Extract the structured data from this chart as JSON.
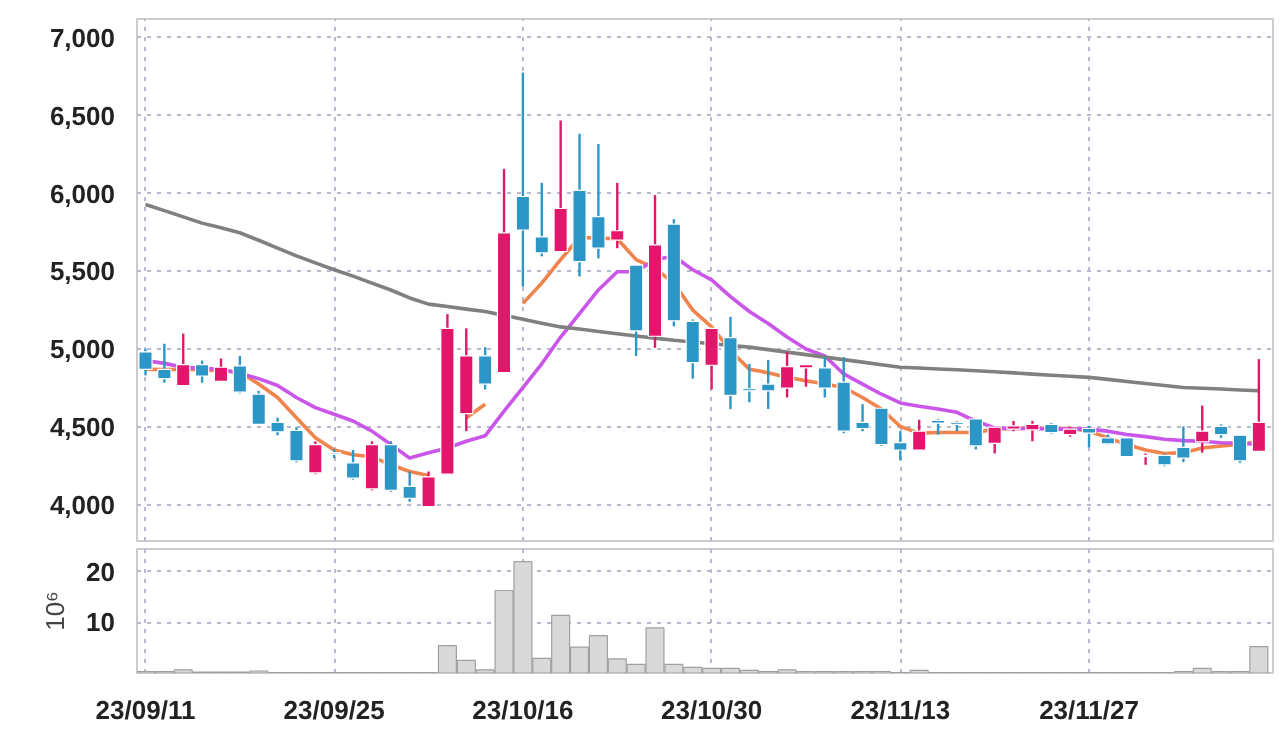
{
  "chart_data": [
    {
      "type": "candlestick",
      "ohlc": [
        [
          4984,
          5002,
          4833,
          4872
        ],
        [
          4872,
          5036,
          4786,
          4812
        ],
        [
          4768,
          5101,
          4768,
          4902
        ],
        [
          4902,
          4928,
          4786,
          4829
        ],
        [
          4794,
          4941,
          4794,
          4885
        ],
        [
          4894,
          4958,
          4717,
          4725
        ],
        [
          4712,
          4734,
          4518,
          4518
        ],
        [
          4531,
          4561,
          4449,
          4471
        ],
        [
          4479,
          4501,
          4276,
          4285
        ],
        [
          4207,
          4410,
          4199,
          4389
        ],
        [
          4337,
          4359,
          4302,
          4328
        ],
        [
          4272,
          4354,
          4164,
          4173
        ],
        [
          4104,
          4410,
          4095,
          4389
        ],
        [
          4389,
          4410,
          4086,
          4095
        ],
        [
          4121,
          4216,
          4022,
          4043
        ],
        [
          3991,
          4216,
          3991,
          4181
        ],
        [
          4199,
          5226,
          4199,
          5135
        ],
        [
          4587,
          5135,
          4475,
          4958
        ],
        [
          4958,
          5014,
          4743,
          4777
        ],
        [
          4850,
          6158,
          4850,
          5748
        ],
        [
          5981,
          6776,
          5403,
          5766
        ],
        [
          5722,
          6068,
          5597,
          5619
        ],
        [
          5628,
          6469,
          5628,
          5904
        ],
        [
          6020,
          6383,
          5468,
          5563
        ],
        [
          5852,
          6318,
          5584,
          5649
        ],
        [
          5701,
          6068,
          5649,
          5761
        ],
        [
          5541,
          5541,
          4958,
          5118
        ],
        [
          5084,
          5990,
          5010,
          5671
        ],
        [
          5804,
          5835,
          5148,
          5183
        ],
        [
          5179,
          5192,
          4812,
          4915
        ],
        [
          4898,
          5135,
          4743,
          5135
        ],
        [
          5075,
          5209,
          4617,
          4704
        ],
        [
          4747,
          4907,
          4660,
          4734
        ],
        [
          4777,
          4932,
          4617,
          4734
        ],
        [
          4751,
          4984,
          4691,
          4889
        ],
        [
          4881,
          4902,
          4760,
          4902
        ],
        [
          4881,
          4950,
          4691,
          4751
        ],
        [
          4790,
          4950,
          4462,
          4475
        ],
        [
          4531,
          4648,
          4475,
          4492
        ],
        [
          4622,
          4622,
          4380,
          4389
        ],
        [
          4401,
          4475,
          4289,
          4354
        ],
        [
          4354,
          4548,
          4354,
          4475
        ],
        [
          4544,
          4553,
          4453,
          4527
        ],
        [
          4531,
          4540,
          4475,
          4518
        ],
        [
          4553,
          4553,
          4358,
          4380
        ],
        [
          4397,
          4501,
          4332,
          4501
        ],
        [
          4488,
          4540,
          4475,
          4509
        ],
        [
          4483,
          4540,
          4410,
          4518
        ],
        [
          4518,
          4527,
          4458,
          4466
        ],
        [
          4453,
          4501,
          4440,
          4488
        ],
        [
          4492,
          4509,
          4371,
          4462
        ],
        [
          4432,
          4453,
          4389,
          4393
        ],
        [
          4432,
          4432,
          4311,
          4311
        ],
        [
          4311,
          4332,
          4259,
          4320
        ],
        [
          4320,
          4332,
          4250,
          4259
        ],
        [
          4371,
          4505,
          4276,
          4302
        ],
        [
          4406,
          4639,
          4337,
          4475
        ],
        [
          4505,
          4518,
          4432,
          4453
        ],
        [
          4449,
          4449,
          4272,
          4285
        ],
        [
          4345,
          4937,
          4345,
          4531
        ]
      ],
      "colors": [
        "#2c96c6",
        "#2c96c6",
        "#e2176b",
        "#2c96c6",
        "#e2176b",
        "#2c96c6",
        "#2c96c6",
        "#2c96c6",
        "#2c96c6",
        "#e2176b",
        "#2c96c6",
        "#2c96c6",
        "#e2176b",
        "#2c96c6",
        "#2c96c6",
        "#e2176b",
        "#e2176b",
        "#e2176b",
        "#2c96c6",
        "#e2176b",
        "#2c96c6",
        "#2c96c6",
        "#e2176b",
        "#2c96c6",
        "#2c96c6",
        "#e2176b",
        "#2c96c6",
        "#e2176b",
        "#2c96c6",
        "#2c96c6",
        "#e2176b",
        "#2c96c6",
        "#2c96c6",
        "#2c96c6",
        "#e2176b",
        "#e2176b",
        "#2c96c6",
        "#2c96c6",
        "#2c96c6",
        "#2c96c6",
        "#2c96c6",
        "#e2176b",
        "#2c96c6",
        "#2c96c6",
        "#2c96c6",
        "#e2176b",
        "#e2176b",
        "#e2176b",
        "#2c96c6",
        "#e2176b",
        "#2c96c6",
        "#2c96c6",
        "#2c96c6",
        "#e2176b",
        "#2c96c6",
        "#2c96c6",
        "#e2176b",
        "#2c96c6",
        "#2c96c6",
        "#e2176b"
      ],
      "series": [
        {
          "type": "line",
          "color": "#f0844c",
          "values": [
            4872,
            4870,
            4872,
            4868,
            4863,
            4855,
            4777,
            4691,
            4561,
            4432,
            4354,
            4324,
            4311,
            4259,
            4216,
            4190,
            null,
            4561,
            4648,
            null,
            5295,
            5425,
            5576,
            5718,
            5714,
            5710,
            5576,
            5520,
            5425,
            5252,
            5144,
            4993,
            4872,
            4850,
            4820,
            4799,
            4777,
            4755,
            4691,
            4617,
            4505,
            4462,
            4466,
            4466,
            4466,
            4488,
            4492,
            4496,
            4492,
            4492,
            4475,
            4432,
            4389,
            4354,
            4332,
            4337,
            4367,
            4380,
            4389,
            4410
          ]
        },
        {
          "type": "line",
          "color": "#c956e8",
          "values": [
            4928,
            4910,
            4885,
            4878,
            4872,
            4845,
            4812,
            4768,
            4691,
            4626,
            4583,
            4540,
            4475,
            4389,
            4302,
            4337,
            4367,
            4410,
            4445,
            4604,
            4755,
            4907,
            5079,
            5230,
            5381,
            5498,
            5498,
            5576,
            5597,
            5511,
            5446,
            5338,
            5243,
            5166,
            5079,
            5002,
            4958,
            4842,
            4777,
            4712,
            4656,
            4635,
            4617,
            4596,
            4540,
            4496,
            4492,
            4492,
            4488,
            4488,
            4488,
            4475,
            4453,
            4440,
            4423,
            4414,
            4410,
            4401,
            4397,
            4389
          ]
        },
        {
          "type": "line",
          "color": "#808080",
          "values": [
            5930,
            5890,
            5850,
            5810,
            5780,
            5748,
            5700,
            5650,
            5600,
            5555,
            5511,
            5470,
            5425,
            5381,
            5330,
            5290,
            5275,
            5258,
            5243,
            5218,
            5193,
            5168,
            5144,
            5130,
            5115,
            5100,
            5086,
            5072,
            5058,
            5047,
            5036,
            5025,
            5014,
            4998,
            4982,
            4966,
            4950,
            4934,
            4918,
            4901,
            4885,
            4880,
            4874,
            4869,
            4863,
            4856,
            4849,
            4841,
            4834,
            4827,
            4820,
            4807,
            4794,
            4781,
            4768,
            4755,
            4750,
            4745,
            4739,
            4734
          ]
        }
      ],
      "ylim": [
        3770,
        7120
      ],
      "yticks": [
        {
          "value": 4000,
          "label": "4,000"
        },
        {
          "value": 4500,
          "label": "4,500"
        },
        {
          "value": 5000,
          "label": "5,000"
        },
        {
          "value": 5500,
          "label": "5,500"
        },
        {
          "value": 6000,
          "label": "6,000"
        },
        {
          "value": 6500,
          "label": "6,500"
        },
        {
          "value": 7000,
          "label": "7,000"
        }
      ],
      "grid": true,
      "tick_labels": "y"
    },
    {
      "type": "bar",
      "ylabel": "10⁶",
      "categories": [
        "23/09/11",
        null,
        null,
        null,
        null,
        null,
        null,
        null,
        null,
        null,
        "23/09/25",
        null,
        null,
        null,
        null,
        null,
        null,
        null,
        null,
        null,
        "23/10/16",
        null,
        null,
        null,
        null,
        null,
        null,
        null,
        null,
        null,
        "23/10/30",
        null,
        null,
        null,
        null,
        null,
        null,
        null,
        null,
        null,
        "23/11/13",
        null,
        null,
        null,
        null,
        null,
        null,
        null,
        null,
        null,
        "23/11/27",
        null,
        null,
        null,
        null,
        null,
        null,
        null,
        null,
        null
      ],
      "values": [
        0.3,
        0.3,
        0.6,
        0.2,
        0.2,
        0.2,
        0.4,
        0.1,
        0.1,
        0.1,
        0.1,
        0.1,
        0.1,
        0.1,
        0.1,
        0.1,
        5.4,
        2.5,
        0.6,
        16.3,
        22.0,
        2.9,
        11.4,
        5.1,
        7.4,
        2.8,
        1.7,
        8.9,
        1.7,
        1.1,
        0.9,
        0.9,
        0.5,
        0.3,
        0.6,
        0.3,
        0.3,
        0.3,
        0.3,
        0.3,
        0.1,
        0.5,
        0.1,
        0.1,
        0.1,
        0.1,
        0.1,
        0.1,
        0.1,
        0.1,
        0.1,
        0.1,
        0.1,
        0.1,
        0.1,
        0.3,
        0.9,
        0.3,
        0.3,
        5.2
      ],
      "color": "#d9d9d9",
      "ylim": [
        0,
        24.5
      ],
      "yticks": [
        10,
        20
      ],
      "grid": true
    }
  ]
}
